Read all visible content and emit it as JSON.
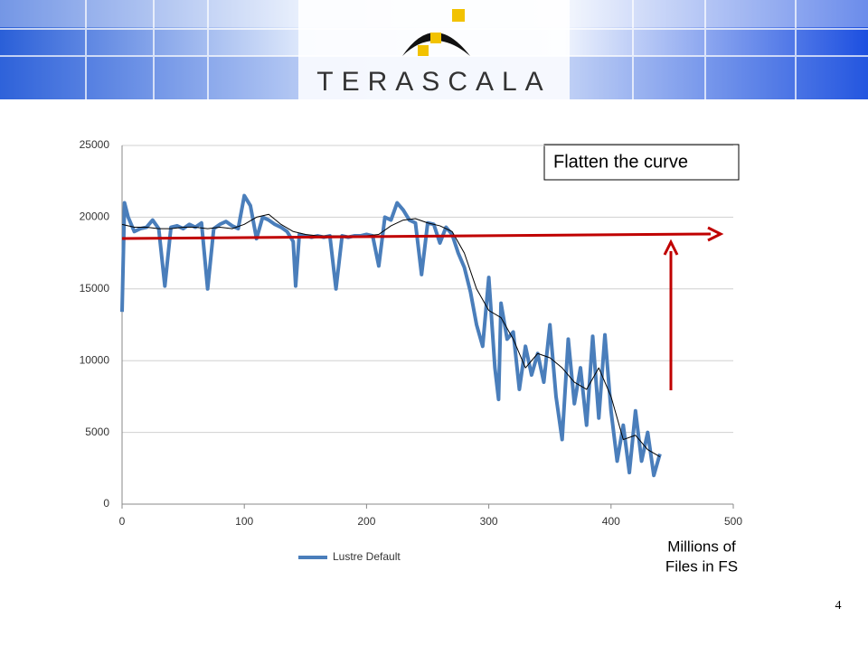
{
  "header": {
    "logo": "TERASCALA"
  },
  "page_number": "4",
  "chart_data": {
    "type": "line",
    "annotation": "Flatten the curve",
    "xlabel": [
      "Millions of",
      "Files in FS"
    ],
    "xlim": [
      0,
      500
    ],
    "xticks": [
      0,
      100,
      200,
      300,
      400,
      500
    ],
    "ylim": [
      0,
      25000
    ],
    "yticks": [
      0,
      5000,
      10000,
      15000,
      20000,
      25000
    ],
    "grid": true,
    "series": [
      {
        "name": "Lustre Default",
        "color": "#4a7ebb",
        "x": [
          0,
          2,
          5,
          10,
          15,
          20,
          25,
          30,
          35,
          40,
          45,
          50,
          55,
          60,
          65,
          70,
          75,
          80,
          85,
          90,
          95,
          100,
          105,
          110,
          115,
          120,
          125,
          130,
          135,
          140,
          142,
          145,
          150,
          155,
          160,
          165,
          170,
          175,
          180,
          185,
          190,
          195,
          200,
          205,
          210,
          215,
          220,
          225,
          230,
          235,
          240,
          245,
          250,
          255,
          260,
          265,
          270,
          275,
          280,
          285,
          290,
          295,
          300,
          305,
          308,
          310,
          315,
          320,
          325,
          330,
          335,
          340,
          345,
          350,
          355,
          360,
          365,
          370,
          375,
          380,
          385,
          390,
          395,
          400,
          405,
          410,
          415,
          420,
          425,
          430,
          435,
          440
        ],
        "values": [
          13400,
          21000,
          20000,
          19000,
          19200,
          19300,
          19800,
          19200,
          15200,
          19300,
          19400,
          19200,
          19500,
          19300,
          19600,
          15000,
          19200,
          19500,
          19700,
          19400,
          19200,
          21500,
          20800,
          18500,
          20000,
          19800,
          19500,
          19300,
          19000,
          18300,
          15200,
          18800,
          18700,
          18600,
          18700,
          18600,
          18700,
          15000,
          18700,
          18600,
          18700,
          18700,
          18800,
          18700,
          16600,
          20000,
          19800,
          21000,
          20500,
          19800,
          19600,
          16000,
          19600,
          19500,
          18200,
          19300,
          18800,
          17500,
          16500,
          14800,
          12500,
          11000,
          15800,
          9500,
          7300,
          14000,
          11500,
          12000,
          8000,
          11000,
          9000,
          10500,
          8500,
          12500,
          7500,
          4500,
          11500,
          7000,
          9500,
          5500,
          11700,
          6000,
          11800,
          6500,
          3000,
          5500,
          2200,
          6500,
          3000,
          5000,
          2000,
          3500
        ]
      },
      {
        "color": "#000000",
        "x": [
          0,
          10,
          20,
          30,
          40,
          50,
          60,
          70,
          80,
          90,
          100,
          110,
          120,
          130,
          140,
          150,
          160,
          170,
          180,
          190,
          200,
          210,
          220,
          230,
          240,
          250,
          260,
          270,
          280,
          290,
          300,
          310,
          320,
          330,
          340,
          350,
          360,
          370,
          380,
          390,
          400,
          410,
          420,
          430,
          440
        ],
        "values": [
          19500,
          19300,
          19300,
          19200,
          19200,
          19300,
          19300,
          19200,
          19300,
          19200,
          19500,
          20000,
          20200,
          19500,
          19000,
          18800,
          18700,
          18700,
          18700,
          18700,
          18700,
          18800,
          19400,
          19800,
          19900,
          19600,
          19400,
          19000,
          17500,
          15000,
          13500,
          13000,
          11500,
          9500,
          10500,
          10200,
          9500,
          8500,
          8000,
          9500,
          7500,
          4500,
          4800,
          3800,
          3300
        ]
      }
    ]
  }
}
